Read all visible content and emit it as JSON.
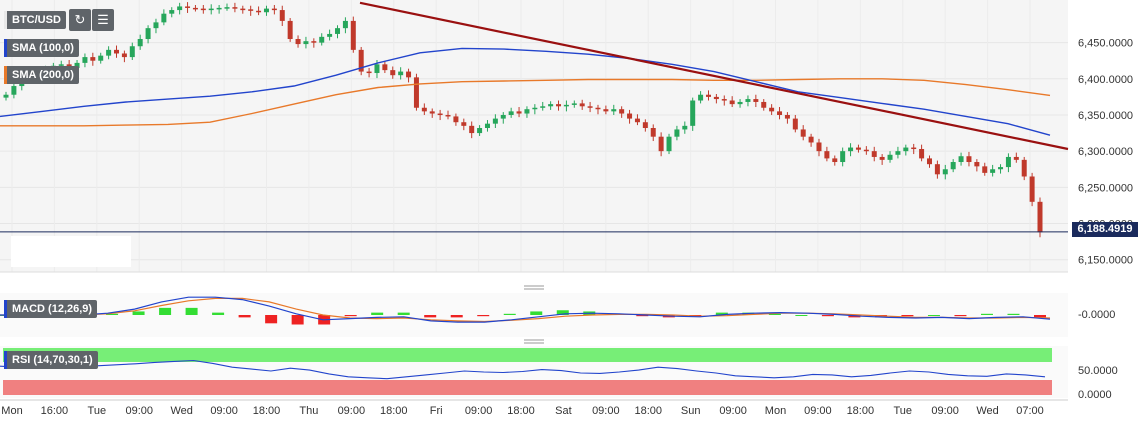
{
  "toolbar": {
    "symbol": "BTC/USD",
    "refresh_icon": "refresh-icon",
    "bars_icon": "bars-icon"
  },
  "indicators": {
    "sma100": {
      "label": "SMA (100,0)",
      "color": "#2233cc"
    },
    "sma200": {
      "label": "SMA (200,0)",
      "color": "#ee7722"
    },
    "macd": {
      "label": "MACD (12,26,9)",
      "color": "#2233cc"
    },
    "rsi": {
      "label": "RSI (14,70,30,1)",
      "color": "#2233cc"
    }
  },
  "current_price": "6,188.4919",
  "colors": {
    "up": "#26a65b",
    "down": "#c0392b",
    "trendline": "#9a1010",
    "sma100": "#2244cc",
    "sma200": "#e8792a",
    "rsi_over": "#77ee77",
    "rsi_under": "#f08080",
    "grid_bg": "#f4f4f4"
  },
  "chart_data": {
    "type": "candlestick",
    "price_axis_ticks": [
      "6,450.0000",
      "6,400.0000",
      "6,350.0000",
      "6,300.0000",
      "6,250.0000",
      "6,200.0000",
      "6,150.0000"
    ],
    "price_axis_values": [
      6450,
      6400,
      6350,
      6300,
      6250,
      6200,
      6150
    ],
    "ylim": [
      6133,
      6502
    ],
    "x_ticks": [
      "Mon",
      "16:00",
      "Tue",
      "09:00",
      "Wed",
      "09:00",
      "18:00",
      "Thu",
      "09:00",
      "18:00",
      "Fri",
      "09:00",
      "18:00",
      "Sat",
      "09:00",
      "18:00",
      "Sun",
      "09:00",
      "Mon",
      "09:00",
      "18:00",
      "Tue",
      "09:00",
      "Wed",
      "07:00"
    ],
    "close_series": [
      6378,
      6390,
      6402,
      6405,
      6410,
      6412,
      6418,
      6420,
      6415,
      6422,
      6430,
      6425,
      6432,
      6440,
      6435,
      6430,
      6445,
      6455,
      6470,
      6478,
      6490,
      6495,
      6500,
      6498,
      6497,
      6495,
      6497,
      6498,
      6499,
      6497,
      6496,
      6494,
      6492,
      6497,
      6495,
      6480,
      6455,
      6448,
      6452,
      6450,
      6458,
      6462,
      6470,
      6480,
      6440,
      6410,
      6408,
      6420,
      6412,
      6405,
      6410,
      6402,
      6360,
      6355,
      6352,
      6350,
      6348,
      6340,
      6335,
      6325,
      6332,
      6338,
      6345,
      6350,
      6355,
      6352,
      6358,
      6360,
      6362,
      6365,
      6362,
      6364,
      6366,
      6362,
      6360,
      6358,
      6355,
      6358,
      6352,
      6345,
      6340,
      6332,
      6320,
      6300,
      6320,
      6330,
      6335,
      6370,
      6378,
      6375,
      6372,
      6370,
      6365,
      6368,
      6372,
      6368,
      6360,
      6355,
      6350,
      6345,
      6330,
      6320,
      6312,
      6300,
      6290,
      6285,
      6300,
      6305,
      6302,
      6300,
      6292,
      6288,
      6295,
      6300,
      6305,
      6303,
      6290,
      6282,
      6268,
      6275,
      6285,
      6293,
      6285,
      6279,
      6270,
      6275,
      6278,
      6292,
      6288,
      6265,
      6230,
      6188
    ],
    "trendline": {
      "start": [
        0,
        6505
      ],
      "end": [
        1,
        6303
      ]
    },
    "sma100": [
      6348,
      6355,
      6362,
      6368,
      6372,
      6376,
      6382,
      6390,
      6405,
      6422,
      6436,
      6442,
      6441,
      6438,
      6434,
      6428,
      6420,
      6410,
      6396,
      6382,
      6374,
      6366,
      6358,
      6348,
      6338,
      6322
    ],
    "sma200": [
      6335,
      6335,
      6335,
      6336,
      6337,
      6340,
      6352,
      6365,
      6378,
      6388,
      6393,
      6396,
      6397,
      6398,
      6399,
      6399,
      6399,
      6398,
      6398,
      6399,
      6400,
      6400,
      6398,
      6392,
      6385,
      6377
    ],
    "macd": {
      "label": "MACD (12,26,9)",
      "tick": "-0.0000",
      "macd_line": [
        0,
        0,
        -2,
        0,
        3,
        10,
        22,
        30,
        30,
        26,
        15,
        2,
        -8,
        -6,
        -4,
        -3,
        -10,
        -12,
        -12,
        -8,
        -3,
        2,
        3,
        2,
        0,
        -2,
        -3,
        1,
        3,
        4,
        3,
        1,
        -2,
        -4,
        -5,
        -4,
        -6,
        -4,
        -3,
        -7
      ],
      "signal_line": [
        0,
        0,
        -1,
        0,
        2,
        7,
        16,
        24,
        28,
        28,
        22,
        10,
        0,
        -5,
        -6,
        -5,
        -8,
        -10,
        -11,
        -9,
        -6,
        -2,
        0,
        1,
        1,
        0,
        -2,
        -1,
        1,
        3,
        3,
        2,
        0,
        -2,
        -4,
        -4,
        -5,
        -5,
        -4,
        -5
      ],
      "histogram": [
        0,
        0,
        -1,
        0,
        1,
        3,
        6,
        6,
        2,
        -2,
        -7,
        -8,
        -8,
        -1,
        2,
        2,
        -2,
        -2,
        -1,
        1,
        3,
        4,
        3,
        1,
        -1,
        -2,
        -1,
        2,
        2,
        1,
        0,
        -1,
        -2,
        -2,
        -1,
        0,
        -1,
        1,
        1,
        -2
      ]
    },
    "rsi": {
      "label": "RSI (14,70,30,1)",
      "ticks": [
        "50.0000",
        "0.0000"
      ],
      "tick_values": [
        50,
        0
      ],
      "ylim": [
        0,
        100
      ],
      "overbought": 70,
      "oversold": 30,
      "values": [
        62,
        60,
        61,
        58,
        60,
        63,
        65,
        67,
        70,
        72,
        74,
        68,
        60,
        56,
        52,
        58,
        54,
        46,
        40,
        38,
        36,
        40,
        44,
        48,
        52,
        50,
        49,
        51,
        55,
        53,
        48,
        47,
        50,
        54,
        60,
        57,
        52,
        48,
        42,
        40,
        38,
        40,
        45,
        44,
        40,
        43,
        48,
        52,
        50,
        45,
        42,
        41,
        46,
        44,
        40
      ]
    }
  }
}
